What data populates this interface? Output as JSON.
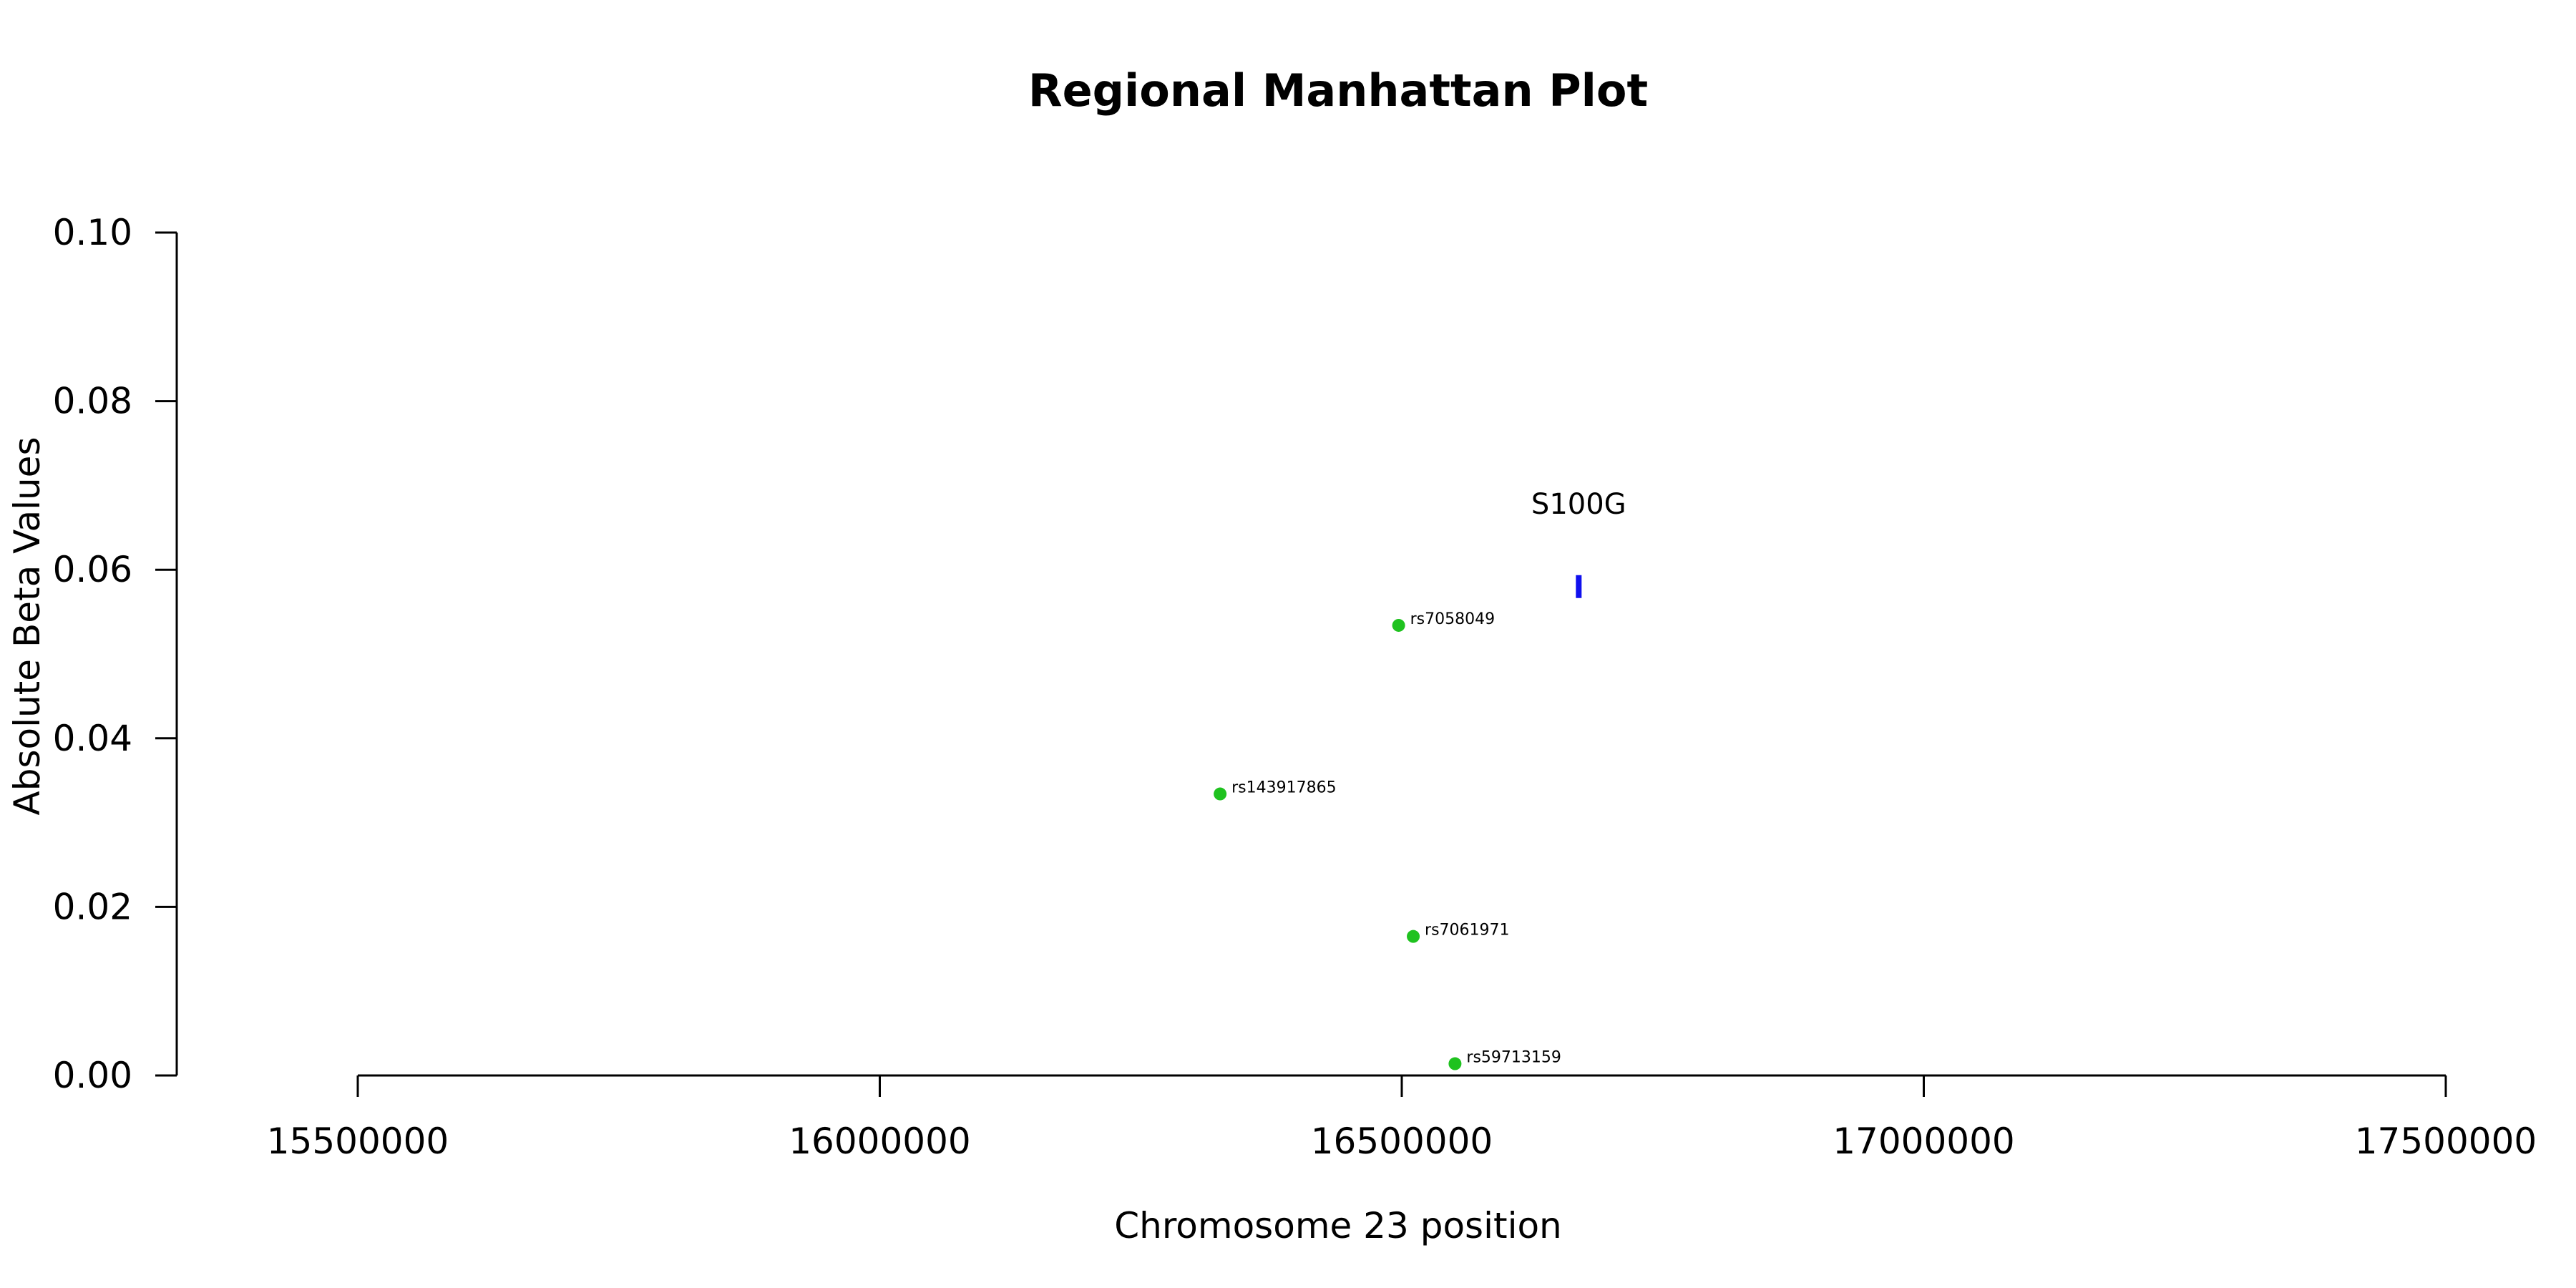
{
  "chart_data": {
    "type": "scatter",
    "title": "Regional Manhattan Plot",
    "xlabel": "Chromosome 23 position",
    "ylabel": "Absolute Beta Values",
    "xlim": [
      15500000,
      17500000
    ],
    "ylim": [
      0,
      0.1
    ],
    "x_ticks": [
      15500000,
      16000000,
      16500000,
      17000000,
      17500000
    ],
    "y_ticks": [
      0.0,
      0.02,
      0.04,
      0.06,
      0.08,
      0.1
    ],
    "y_tick_labels": [
      "0.00",
      "0.02",
      "0.04",
      "0.06",
      "0.08",
      "0.10"
    ],
    "grid": false,
    "point_color": "#1fc21f",
    "gene_color": "#1010ee",
    "points": [
      {
        "label": "rs7058049",
        "x": 16497000,
        "y": 0.0534
      },
      {
        "label": "rs143917865",
        "x": 16326000,
        "y": 0.0334
      },
      {
        "label": "rs7061971",
        "x": 16511000,
        "y": 0.0165
      },
      {
        "label": "rs59713159",
        "x": 16551000,
        "y": 0.0014
      }
    ],
    "genes": [
      {
        "name": "S100G",
        "start": 16667000,
        "end": 16672000,
        "y": 0.058
      }
    ]
  }
}
